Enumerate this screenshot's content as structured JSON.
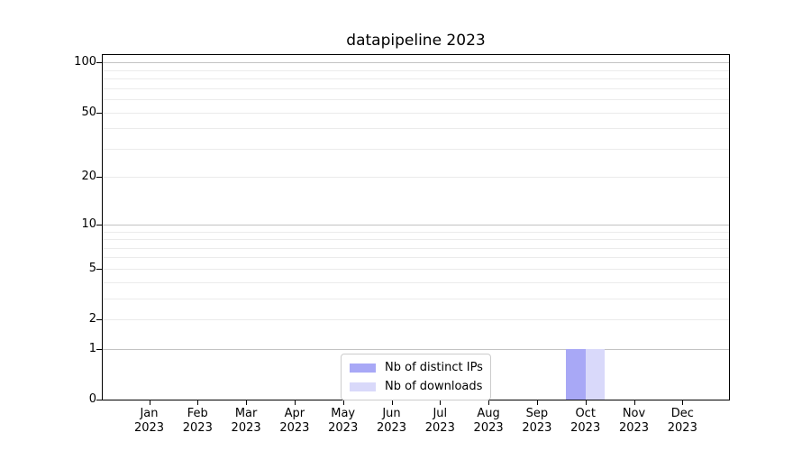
{
  "chart_data": {
    "type": "bar",
    "title": "datapipeline 2023",
    "x": {
      "categories": [
        "Jan",
        "Feb",
        "Mar",
        "Apr",
        "May",
        "Jun",
        "Jul",
        "Aug",
        "Sep",
        "Oct",
        "Nov",
        "Dec"
      ],
      "year_suffix": "2023"
    },
    "series": [
      {
        "name": "Nb of distinct IPs",
        "color": "#a8a8f6",
        "values": [
          0,
          0,
          0,
          0,
          0,
          0,
          0,
          0,
          0,
          1,
          0,
          0
        ]
      },
      {
        "name": "Nb of downloads",
        "color": "#d9d9fa",
        "values": [
          0,
          0,
          0,
          0,
          0,
          0,
          0,
          0,
          0,
          1,
          0,
          0
        ]
      }
    ],
    "yscale": "log1p",
    "ylim": [
      0,
      114
    ],
    "yticks": [
      0,
      1,
      2,
      5,
      10,
      20,
      50,
      100
    ],
    "y_major_gridlines": [
      1,
      10,
      100
    ],
    "y_minor_gridlines": [
      2,
      3,
      4,
      5,
      6,
      7,
      8,
      9,
      20,
      30,
      40,
      50,
      60,
      70,
      80,
      90
    ],
    "grid": true,
    "legend": {
      "entries": [
        "Nb of distinct IPs",
        "Nb of downloads"
      ],
      "position": "lower-center-left"
    }
  }
}
